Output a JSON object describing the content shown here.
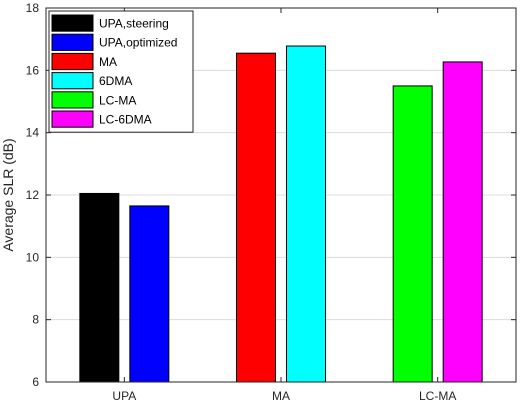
{
  "chart_data": {
    "type": "bar",
    "categories": [
      "UPA",
      "MA",
      "LC-MA"
    ],
    "series_by_group": [
      [
        {
          "name": "UPA,steering",
          "value": 12.05,
          "color": "#000000"
        },
        {
          "name": "UPA,optimized",
          "value": 11.65,
          "color": "#0000ff"
        }
      ],
      [
        {
          "name": "MA",
          "value": 16.55,
          "color": "#ff0000"
        },
        {
          "name": "6DMA",
          "value": 16.78,
          "color": "#00ffff"
        }
      ],
      [
        {
          "name": "LC-MA",
          "value": 15.5,
          "color": "#00ff00"
        },
        {
          "name": "LC-6DMA",
          "value": 16.27,
          "color": "#ff00ff"
        }
      ]
    ],
    "legend": [
      {
        "name": "UPA,steering",
        "color": "#000000"
      },
      {
        "name": "UPA,optimized",
        "color": "#0000ff"
      },
      {
        "name": "MA",
        "color": "#ff0000"
      },
      {
        "name": "6DMA",
        "color": "#00ffff"
      },
      {
        "name": "LC-MA",
        "color": "#00ff00"
      },
      {
        "name": "LC-6DMA",
        "color": "#ff00ff"
      }
    ],
    "legend_position": "top-left",
    "title": "",
    "xlabel": "",
    "ylabel": "Average SLR (dB)",
    "ylim": [
      6,
      18
    ],
    "yticks": [
      6,
      8,
      10,
      12,
      14,
      16,
      18
    ],
    "grid": true
  }
}
